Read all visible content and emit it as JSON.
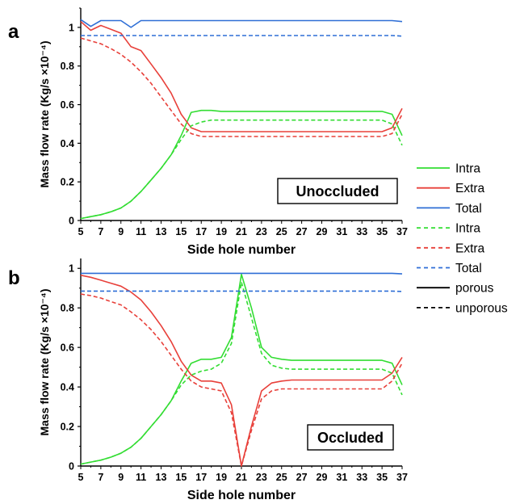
{
  "figure": {
    "legend": {
      "entries": [
        {
          "label": "Intra",
          "color": "#33dd33",
          "style": "solid"
        },
        {
          "label": "Extra",
          "color": "#e8403a",
          "style": "solid"
        },
        {
          "label": "Total",
          "color": "#2f6fd6",
          "style": "solid"
        },
        {
          "label": "Intra",
          "color": "#33dd33",
          "style": "dashed"
        },
        {
          "label": "Extra",
          "color": "#e8403a",
          "style": "dashed"
        },
        {
          "label": "Total",
          "color": "#2f6fd6",
          "style": "dashed"
        },
        {
          "label": "porous",
          "color": "#000000",
          "style": "solid"
        },
        {
          "label": "unporous",
          "color": "#000000",
          "style": "dashed"
        }
      ]
    }
  },
  "chart_data": [
    {
      "type": "line",
      "panel_label": "a",
      "annotation": "Unoccluded",
      "xlabel": "Side hole number",
      "ylabel": "Mass flow rate (Kg/s ×10⁻⁴)",
      "xlim": [
        5,
        37
      ],
      "ylim": [
        0,
        1.1
      ],
      "x_ticks": [
        5,
        7,
        9,
        11,
        13,
        15,
        17,
        19,
        21,
        23,
        25,
        27,
        29,
        31,
        33,
        35,
        37
      ],
      "y_ticks": [
        0,
        0.2,
        0.4,
        0.6,
        0.8,
        1
      ],
      "y_tick_labels": [
        "0",
        "0.2",
        "0.4",
        "0.6",
        "0.8",
        "1"
      ],
      "x": [
        5,
        6,
        7,
        8,
        9,
        10,
        11,
        12,
        13,
        14,
        15,
        16,
        17,
        18,
        19,
        20,
        21,
        22,
        23,
        24,
        25,
        26,
        27,
        28,
        29,
        30,
        31,
        32,
        33,
        34,
        35,
        36,
        37
      ],
      "series": [
        {
          "name": "Intra",
          "color": "#33dd33",
          "style": "solid",
          "values": [
            0.01,
            0.02,
            0.03,
            0.045,
            0.065,
            0.1,
            0.15,
            0.21,
            0.27,
            0.34,
            0.44,
            0.56,
            0.57,
            0.57,
            0.565,
            0.565,
            0.565,
            0.565,
            0.565,
            0.565,
            0.565,
            0.565,
            0.565,
            0.565,
            0.565,
            0.565,
            0.565,
            0.565,
            0.565,
            0.565,
            0.565,
            0.55,
            0.44
          ]
        },
        {
          "name": "Extra",
          "color": "#e8403a",
          "style": "solid",
          "values": [
            1.03,
            0.985,
            1.01,
            0.99,
            0.97,
            0.9,
            0.88,
            0.81,
            0.74,
            0.66,
            0.55,
            0.48,
            0.46,
            0.46,
            0.46,
            0.46,
            0.46,
            0.46,
            0.46,
            0.46,
            0.46,
            0.46,
            0.46,
            0.46,
            0.46,
            0.46,
            0.46,
            0.46,
            0.46,
            0.46,
            0.46,
            0.48,
            0.58
          ]
        },
        {
          "name": "Total",
          "color": "#2f6fd6",
          "style": "solid",
          "values": [
            1.04,
            1.005,
            1.035,
            1.035,
            1.035,
            1.0,
            1.035,
            1.035,
            1.035,
            1.035,
            1.035,
            1.035,
            1.035,
            1.035,
            1.035,
            1.035,
            1.035,
            1.035,
            1.035,
            1.035,
            1.035,
            1.035,
            1.035,
            1.035,
            1.035,
            1.035,
            1.035,
            1.035,
            1.035,
            1.035,
            1.035,
            1.035,
            1.03
          ]
        },
        {
          "name": "Intra",
          "color": "#33dd33",
          "style": "dashed",
          "values": [
            0.01,
            0.02,
            0.03,
            0.045,
            0.065,
            0.1,
            0.15,
            0.21,
            0.27,
            0.34,
            0.42,
            0.49,
            0.51,
            0.52,
            0.52,
            0.52,
            0.52,
            0.52,
            0.52,
            0.52,
            0.52,
            0.52,
            0.52,
            0.52,
            0.52,
            0.52,
            0.52,
            0.52,
            0.52,
            0.52,
            0.52,
            0.5,
            0.39
          ]
        },
        {
          "name": "Extra",
          "color": "#e8403a",
          "style": "dashed",
          "values": [
            0.945,
            0.93,
            0.915,
            0.89,
            0.86,
            0.82,
            0.77,
            0.71,
            0.64,
            0.57,
            0.5,
            0.45,
            0.435,
            0.435,
            0.435,
            0.435,
            0.435,
            0.435,
            0.435,
            0.435,
            0.435,
            0.435,
            0.435,
            0.435,
            0.435,
            0.435,
            0.435,
            0.435,
            0.435,
            0.435,
            0.435,
            0.45,
            0.55
          ]
        },
        {
          "name": "Total",
          "color": "#2f6fd6",
          "style": "dashed",
          "values": [
            0.958,
            0.958,
            0.958,
            0.958,
            0.958,
            0.958,
            0.958,
            0.958,
            0.958,
            0.958,
            0.958,
            0.958,
            0.958,
            0.958,
            0.958,
            0.958,
            0.958,
            0.958,
            0.958,
            0.958,
            0.958,
            0.958,
            0.958,
            0.958,
            0.958,
            0.958,
            0.958,
            0.958,
            0.958,
            0.958,
            0.958,
            0.958,
            0.955
          ]
        }
      ]
    },
    {
      "type": "line",
      "panel_label": "b",
      "annotation": "Occluded",
      "xlabel": "Side hole number",
      "ylabel": "Mass flow rate (Kg/s ×10⁻⁴)",
      "xlim": [
        5,
        37
      ],
      "ylim": [
        0,
        1.05
      ],
      "x_ticks": [
        5,
        7,
        9,
        11,
        13,
        15,
        17,
        19,
        21,
        23,
        25,
        27,
        29,
        31,
        33,
        35,
        37
      ],
      "y_ticks": [
        0,
        0.2,
        0.4,
        0.6,
        0.8,
        1
      ],
      "y_tick_labels": [
        "0",
        "0.2",
        "0.4",
        "0.6",
        "0.8",
        "1"
      ],
      "x": [
        5,
        6,
        7,
        8,
        9,
        10,
        11,
        12,
        13,
        14,
        15,
        16,
        17,
        18,
        19,
        20,
        21,
        22,
        23,
        24,
        25,
        26,
        27,
        28,
        29,
        30,
        31,
        32,
        33,
        34,
        35,
        36,
        37
      ],
      "series": [
        {
          "name": "Intra",
          "color": "#33dd33",
          "style": "solid",
          "values": [
            0.01,
            0.02,
            0.03,
            0.045,
            0.065,
            0.095,
            0.14,
            0.2,
            0.26,
            0.33,
            0.43,
            0.52,
            0.54,
            0.54,
            0.55,
            0.65,
            0.97,
            0.8,
            0.6,
            0.55,
            0.54,
            0.535,
            0.535,
            0.535,
            0.535,
            0.535,
            0.535,
            0.535,
            0.535,
            0.535,
            0.535,
            0.52,
            0.41
          ]
        },
        {
          "name": "Extra",
          "color": "#e8403a",
          "style": "solid",
          "values": [
            0.965,
            0.955,
            0.94,
            0.925,
            0.91,
            0.88,
            0.84,
            0.78,
            0.71,
            0.63,
            0.53,
            0.46,
            0.43,
            0.43,
            0.42,
            0.31,
            0.0,
            0.2,
            0.38,
            0.42,
            0.43,
            0.435,
            0.435,
            0.435,
            0.435,
            0.435,
            0.435,
            0.435,
            0.435,
            0.435,
            0.435,
            0.47,
            0.55
          ]
        },
        {
          "name": "Total",
          "color": "#2f6fd6",
          "style": "solid",
          "values": [
            0.975,
            0.975,
            0.975,
            0.975,
            0.975,
            0.975,
            0.975,
            0.975,
            0.975,
            0.975,
            0.975,
            0.975,
            0.975,
            0.975,
            0.975,
            0.975,
            0.975,
            0.975,
            0.975,
            0.975,
            0.975,
            0.975,
            0.975,
            0.975,
            0.975,
            0.975,
            0.975,
            0.975,
            0.975,
            0.975,
            0.975,
            0.975,
            0.972
          ]
        },
        {
          "name": "Intra",
          "color": "#33dd33",
          "style": "dashed",
          "values": [
            0.01,
            0.02,
            0.03,
            0.045,
            0.065,
            0.095,
            0.14,
            0.2,
            0.26,
            0.33,
            0.41,
            0.46,
            0.48,
            0.49,
            0.52,
            0.62,
            0.93,
            0.75,
            0.57,
            0.51,
            0.495,
            0.49,
            0.49,
            0.49,
            0.49,
            0.49,
            0.49,
            0.49,
            0.49,
            0.49,
            0.49,
            0.47,
            0.36
          ]
        },
        {
          "name": "Extra",
          "color": "#e8403a",
          "style": "dashed",
          "values": [
            0.87,
            0.862,
            0.85,
            0.832,
            0.815,
            0.78,
            0.74,
            0.69,
            0.63,
            0.56,
            0.49,
            0.43,
            0.4,
            0.39,
            0.38,
            0.27,
            0.0,
            0.18,
            0.34,
            0.38,
            0.39,
            0.39,
            0.39,
            0.39,
            0.39,
            0.39,
            0.39,
            0.39,
            0.39,
            0.39,
            0.39,
            0.43,
            0.52
          ]
        },
        {
          "name": "Total",
          "color": "#2f6fd6",
          "style": "dashed",
          "values": [
            0.885,
            0.885,
            0.885,
            0.885,
            0.885,
            0.885,
            0.885,
            0.885,
            0.885,
            0.885,
            0.885,
            0.885,
            0.885,
            0.885,
            0.885,
            0.885,
            0.885,
            0.885,
            0.885,
            0.885,
            0.885,
            0.885,
            0.885,
            0.885,
            0.885,
            0.885,
            0.885,
            0.885,
            0.885,
            0.885,
            0.885,
            0.885,
            0.883
          ]
        }
      ]
    }
  ]
}
